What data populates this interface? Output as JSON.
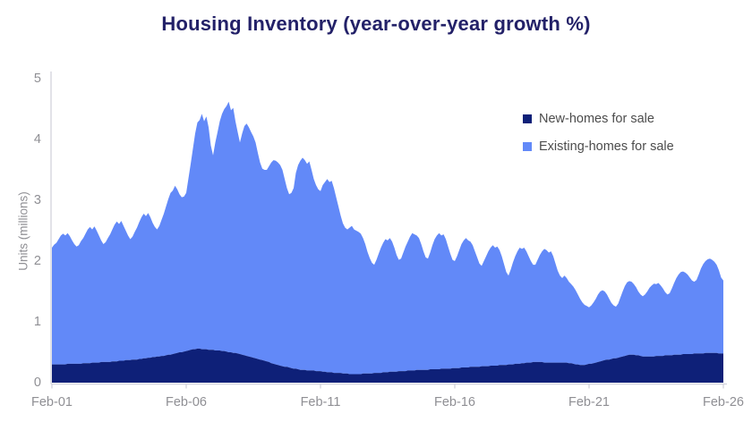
{
  "chart": {
    "title": "Housing Inventory (year-over-year growth %)",
    "y_axis": {
      "label": "Units (millions)",
      "ticks": [
        0,
        1,
        2,
        3,
        4,
        5
      ]
    },
    "x_axis": {
      "labels": [
        "Feb-01",
        "Feb-06",
        "Feb-11",
        "Feb-16",
        "Feb-21",
        "Feb-26"
      ]
    },
    "legend": [
      {
        "label": "New-homes for sale",
        "color": "#0e2078"
      },
      {
        "label": "Existing-homes for sale",
        "color": "#6289f8"
      }
    ],
    "colors": {
      "new_homes_area": "#0e2078",
      "existing_homes_area": "#6289f8",
      "title_text": "#232168",
      "legend_text": "#4c4c4c",
      "axis_text": "#8f8f94",
      "spine": "#d6d6df",
      "background": "#ffffff"
    }
  },
  "chart_data": {
    "type": "area",
    "stacked": true,
    "title": "Housing Inventory (year-over-year growth %)",
    "ylabel": "Units (millions)",
    "xlabel": "",
    "ylim": [
      0,
      5
    ],
    "grid": false,
    "legend_position": "upper right inside plot",
    "x_start": "Feb-2001",
    "x_end": "Feb-2026",
    "frequency": "monthly",
    "x_tick_labels": [
      "Feb-01",
      "Feb-06",
      "Feb-11",
      "Feb-16",
      "Feb-21",
      "Feb-26"
    ],
    "units": "millions of units",
    "series": [
      {
        "name": "New-homes for sale",
        "color": "#0e2078",
        "values": [
          0.3,
          0.3,
          0.3,
          0.3,
          0.3,
          0.3,
          0.3,
          0.31,
          0.31,
          0.31,
          0.31,
          0.31,
          0.31,
          0.31,
          0.32,
          0.32,
          0.32,
          0.32,
          0.33,
          0.33,
          0.33,
          0.33,
          0.34,
          0.34,
          0.34,
          0.34,
          0.34,
          0.35,
          0.35,
          0.35,
          0.36,
          0.36,
          0.36,
          0.37,
          0.37,
          0.37,
          0.38,
          0.38,
          0.38,
          0.39,
          0.39,
          0.4,
          0.4,
          0.41,
          0.41,
          0.42,
          0.42,
          0.43,
          0.43,
          0.44,
          0.44,
          0.45,
          0.46,
          0.46,
          0.47,
          0.48,
          0.49,
          0.5,
          0.5,
          0.51,
          0.52,
          0.53,
          0.54,
          0.55,
          0.55,
          0.56,
          0.56,
          0.55,
          0.55,
          0.55,
          0.54,
          0.54,
          0.54,
          0.53,
          0.53,
          0.53,
          0.52,
          0.52,
          0.51,
          0.5,
          0.5,
          0.49,
          0.49,
          0.48,
          0.47,
          0.46,
          0.45,
          0.44,
          0.43,
          0.42,
          0.41,
          0.4,
          0.39,
          0.38,
          0.37,
          0.36,
          0.35,
          0.34,
          0.32,
          0.31,
          0.3,
          0.29,
          0.28,
          0.27,
          0.26,
          0.26,
          0.25,
          0.24,
          0.23,
          0.23,
          0.22,
          0.21,
          0.21,
          0.21,
          0.2,
          0.2,
          0.2,
          0.2,
          0.19,
          0.19,
          0.19,
          0.18,
          0.18,
          0.17,
          0.17,
          0.17,
          0.16,
          0.16,
          0.16,
          0.16,
          0.15,
          0.15,
          0.15,
          0.14,
          0.14,
          0.14,
          0.14,
          0.14,
          0.14,
          0.15,
          0.15,
          0.15,
          0.15,
          0.15,
          0.16,
          0.16,
          0.16,
          0.16,
          0.17,
          0.17,
          0.17,
          0.18,
          0.18,
          0.18,
          0.18,
          0.19,
          0.19,
          0.19,
          0.19,
          0.2,
          0.2,
          0.2,
          0.2,
          0.21,
          0.21,
          0.21,
          0.21,
          0.21,
          0.21,
          0.22,
          0.22,
          0.22,
          0.22,
          0.22,
          0.23,
          0.23,
          0.23,
          0.23,
          0.23,
          0.24,
          0.24,
          0.24,
          0.24,
          0.25,
          0.25,
          0.25,
          0.25,
          0.26,
          0.26,
          0.26,
          0.26,
          0.26,
          0.27,
          0.27,
          0.27,
          0.27,
          0.28,
          0.28,
          0.28,
          0.28,
          0.29,
          0.29,
          0.29,
          0.29,
          0.3,
          0.3,
          0.3,
          0.31,
          0.31,
          0.31,
          0.32,
          0.32,
          0.33,
          0.33,
          0.33,
          0.34,
          0.34,
          0.34,
          0.34,
          0.34,
          0.33,
          0.33,
          0.33,
          0.33,
          0.33,
          0.33,
          0.33,
          0.33,
          0.33,
          0.33,
          0.33,
          0.32,
          0.32,
          0.31,
          0.3,
          0.3,
          0.29,
          0.29,
          0.29,
          0.3,
          0.31,
          0.31,
          0.32,
          0.33,
          0.34,
          0.35,
          0.36,
          0.37,
          0.38,
          0.38,
          0.39,
          0.4,
          0.4,
          0.41,
          0.42,
          0.43,
          0.44,
          0.45,
          0.46,
          0.46,
          0.46,
          0.45,
          0.45,
          0.44,
          0.43,
          0.43,
          0.43,
          0.43,
          0.43,
          0.43,
          0.44,
          0.44,
          0.44,
          0.44,
          0.45,
          0.45,
          0.45,
          0.45,
          0.46,
          0.46,
          0.46,
          0.46,
          0.47,
          0.47,
          0.47,
          0.47,
          0.47,
          0.48,
          0.48,
          0.48,
          0.48,
          0.48,
          0.49,
          0.49,
          0.49,
          0.49,
          0.49,
          0.49,
          0.48,
          0.48,
          0.48
        ]
      },
      {
        "name": "Existing-homes for sale",
        "color": "#6289f8",
        "values": [
          1.92,
          1.97,
          2.0,
          2.06,
          2.12,
          2.15,
          2.12,
          2.15,
          2.1,
          2.03,
          1.97,
          1.93,
          1.95,
          2.02,
          2.06,
          2.13,
          2.2,
          2.24,
          2.19,
          2.24,
          2.17,
          2.09,
          2.0,
          1.94,
          1.97,
          2.04,
          2.1,
          2.17,
          2.25,
          2.3,
          2.25,
          2.3,
          2.22,
          2.13,
          2.05,
          1.99,
          2.02,
          2.1,
          2.17,
          2.25,
          2.33,
          2.38,
          2.34,
          2.38,
          2.31,
          2.21,
          2.14,
          2.09,
          2.15,
          2.24,
          2.34,
          2.45,
          2.56,
          2.66,
          2.69,
          2.76,
          2.69,
          2.6,
          2.55,
          2.55,
          2.6,
          2.83,
          3.06,
          3.3,
          3.55,
          3.72,
          3.76,
          3.87,
          3.75,
          3.83,
          3.66,
          3.36,
          3.2,
          3.42,
          3.59,
          3.77,
          3.9,
          3.98,
          4.04,
          4.12,
          3.98,
          4.03,
          3.81,
          3.64,
          3.48,
          3.64,
          3.77,
          3.82,
          3.77,
          3.7,
          3.64,
          3.55,
          3.39,
          3.24,
          3.15,
          3.14,
          3.15,
          3.22,
          3.3,
          3.35,
          3.35,
          3.33,
          3.3,
          3.23,
          3.09,
          2.94,
          2.85,
          2.88,
          2.97,
          3.22,
          3.36,
          3.44,
          3.49,
          3.45,
          3.4,
          3.44,
          3.3,
          3.15,
          3.06,
          2.99,
          2.96,
          3.07,
          3.12,
          3.18,
          3.13,
          3.15,
          3.04,
          2.89,
          2.74,
          2.59,
          2.47,
          2.4,
          2.37,
          2.41,
          2.44,
          2.38,
          2.36,
          2.34,
          2.31,
          2.23,
          2.13,
          2.0,
          1.9,
          1.82,
          1.78,
          1.86,
          1.96,
          2.06,
          2.13,
          2.19,
          2.17,
          2.2,
          2.14,
          2.04,
          1.92,
          1.83,
          1.85,
          1.95,
          2.05,
          2.12,
          2.2,
          2.26,
          2.24,
          2.21,
          2.17,
          2.07,
          1.95,
          1.85,
          1.83,
          1.92,
          2.04,
          2.14,
          2.2,
          2.24,
          2.19,
          2.21,
          2.13,
          2.01,
          1.89,
          1.78,
          1.76,
          1.84,
          1.94,
          2.03,
          2.09,
          2.13,
          2.09,
          2.06,
          2.0,
          1.9,
          1.8,
          1.7,
          1.65,
          1.73,
          1.81,
          1.89,
          1.94,
          1.98,
          1.94,
          1.96,
          1.89,
          1.79,
          1.66,
          1.53,
          1.46,
          1.56,
          1.68,
          1.77,
          1.85,
          1.91,
          1.88,
          1.9,
          1.83,
          1.75,
          1.67,
          1.6,
          1.6,
          1.68,
          1.76,
          1.82,
          1.87,
          1.85,
          1.81,
          1.83,
          1.75,
          1.63,
          1.51,
          1.43,
          1.39,
          1.43,
          1.39,
          1.34,
          1.3,
          1.27,
          1.22,
          1.15,
          1.09,
          1.03,
          0.99,
          0.96,
          0.93,
          0.96,
          1.0,
          1.05,
          1.11,
          1.15,
          1.16,
          1.13,
          1.07,
          1.0,
          0.92,
          0.87,
          0.85,
          0.89,
          0.98,
          1.07,
          1.15,
          1.2,
          1.21,
          1.2,
          1.16,
          1.12,
          1.05,
          1.01,
          0.99,
          1.02,
          1.07,
          1.13,
          1.17,
          1.2,
          1.18,
          1.2,
          1.16,
          1.11,
          1.04,
          1.0,
          1.02,
          1.1,
          1.18,
          1.26,
          1.32,
          1.36,
          1.36,
          1.34,
          1.31,
          1.26,
          1.21,
          1.18,
          1.21,
          1.3,
          1.4,
          1.47,
          1.51,
          1.54,
          1.55,
          1.53,
          1.5,
          1.45,
          1.37,
          1.25,
          1.2
        ]
      }
    ]
  }
}
